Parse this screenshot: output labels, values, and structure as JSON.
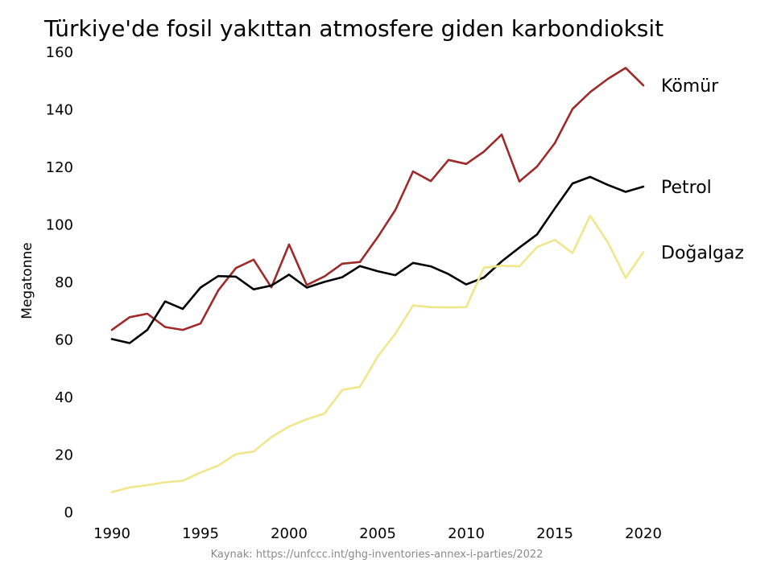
{
  "chart_data": {
    "type": "line",
    "title": "Türkiye'de fosil yakıttan atmosfere giden karbondioksit",
    "xlabel": "",
    "ylabel": "Megatonne",
    "source": "Kaynak: https://unfccc.int/ghg-inventories-annex-i-parties/2022",
    "xlim": [
      1990,
      2020
    ],
    "ylim": [
      0,
      160
    ],
    "x_ticks": [
      "1990",
      "1995",
      "2000",
      "2005",
      "2010",
      "2015",
      "2020"
    ],
    "y_ticks": [
      "0",
      "20",
      "40",
      "60",
      "80",
      "100",
      "120",
      "140",
      "160"
    ],
    "grid": false,
    "legend": "direct labels at line ends",
    "x": [
      1990,
      1991,
      1992,
      1993,
      1994,
      1995,
      1996,
      1997,
      1998,
      1999,
      2000,
      2001,
      2002,
      2003,
      2004,
      2005,
      2006,
      2007,
      2008,
      2009,
      2010,
      2011,
      2012,
      2013,
      2014,
      2015,
      2016,
      2017,
      2018,
      2019,
      2020
    ],
    "series": [
      {
        "name": "Kömür",
        "color": "#9e2a2b",
        "values": [
          63.2,
          67.6,
          68.8,
          64.2,
          63.2,
          65.4,
          76.9,
          84.7,
          87.6,
          78.0,
          92.9,
          78.8,
          81.8,
          86.2,
          86.8,
          95.4,
          104.9,
          118.3,
          114.9,
          122.3,
          120.9,
          125.2,
          131.1,
          114.8,
          120.0,
          128.1,
          140.0,
          145.9,
          150.5,
          154.3,
          148.2
        ]
      },
      {
        "name": "Petrol",
        "color": "#000000",
        "values": [
          60.0,
          58.6,
          63.2,
          73.1,
          70.5,
          77.9,
          81.9,
          81.7,
          77.3,
          78.6,
          82.4,
          77.9,
          79.9,
          81.5,
          85.4,
          83.6,
          82.2,
          86.5,
          85.3,
          82.6,
          79.0,
          81.4,
          87.0,
          91.8,
          96.4,
          105.4,
          114.1,
          116.4,
          113.6,
          111.2,
          113.0
        ]
      },
      {
        "name": "Doğalgaz",
        "color": "#f0e68c",
        "values": [
          6.8,
          8.4,
          9.2,
          10.2,
          10.7,
          13.6,
          16.0,
          20.0,
          20.9,
          25.9,
          29.6,
          32.1,
          34.1,
          42.3,
          43.4,
          53.9,
          61.9,
          71.7,
          71.1,
          71.0,
          71.1,
          84.8,
          85.5,
          85.3,
          92.0,
          94.5,
          89.9,
          102.9,
          93.6,
          81.3,
          90.2
        ]
      }
    ]
  }
}
